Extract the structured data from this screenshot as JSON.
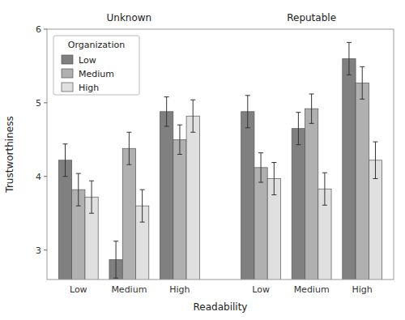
{
  "chart_data": {
    "type": "bar",
    "annotations": [
      "Unknown",
      "Reputable"
    ],
    "xlabel": "Readability",
    "ylabel": "Trustworthiness",
    "categories": [
      "Low",
      "Medium",
      "High",
      "Low",
      "Medium",
      "High"
    ],
    "legend_title": "Organization",
    "series": [
      {
        "name": "Low",
        "color": "#808080",
        "values": [
          4.22,
          2.87,
          4.88,
          4.88,
          4.65,
          5.6
        ],
        "errors": [
          0.22,
          0.25,
          0.2,
          0.22,
          0.22,
          0.22
        ]
      },
      {
        "name": "Medium",
        "color": "#b0b0b0",
        "values": [
          3.82,
          4.38,
          4.5,
          4.12,
          4.92,
          5.27
        ],
        "errors": [
          0.22,
          0.22,
          0.2,
          0.2,
          0.2,
          0.22
        ]
      },
      {
        "name": "High",
        "color": "#e0e0e0",
        "values": [
          3.72,
          3.6,
          4.82,
          3.97,
          3.83,
          4.22
        ],
        "errors": [
          0.22,
          0.22,
          0.22,
          0.22,
          0.22,
          0.25
        ]
      }
    ],
    "ylim": [
      2.6,
      6.0
    ],
    "yticks": [
      3,
      4,
      5,
      6
    ],
    "legend": "upper left",
    "grid": false
  }
}
